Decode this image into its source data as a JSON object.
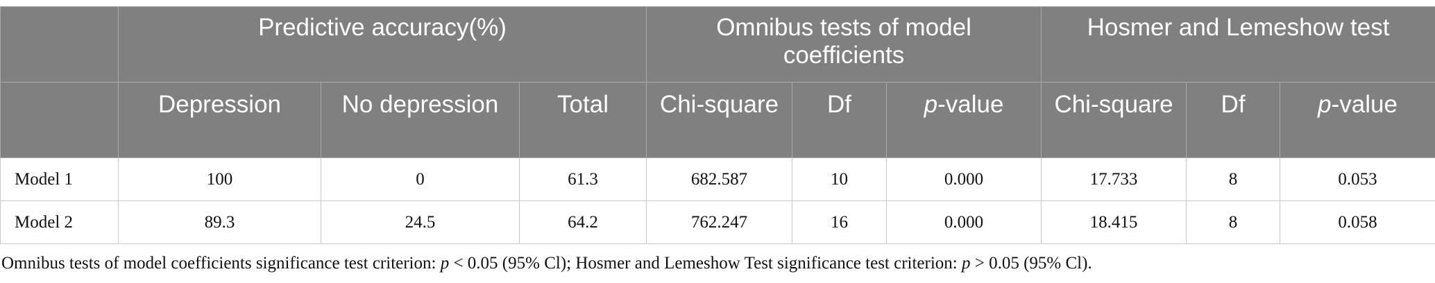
{
  "table": {
    "header_groups": [
      "Predictive accuracy(%)",
      "Omnibus tests of model coefficients",
      "Hosmer and Lemeshow test"
    ],
    "columns": [
      {
        "text": "Depression"
      },
      {
        "text": "No depression"
      },
      {
        "text": "Total"
      },
      {
        "text": "Chi-square"
      },
      {
        "text": "Df"
      },
      {
        "italic": "p",
        "text": "-value"
      },
      {
        "text": "Chi-square"
      },
      {
        "text": "Df"
      },
      {
        "italic": "p",
        "text": "-value"
      }
    ],
    "rows": [
      [
        "Model 1",
        "100",
        "0",
        "61.3",
        "682.587",
        "10",
        "0.000",
        "17.733",
        "8",
        "0.053"
      ],
      [
        "Model 2",
        "89.3",
        "24.5",
        "64.2",
        "762.247",
        "16",
        "0.000",
        "18.415",
        "8",
        "0.058"
      ]
    ]
  },
  "footnote": [
    "Omnibus tests of model coefficients significance test criterion: ",
    "p",
    " < 0.05 (95% Cl); Hosmer and Lemeshow Test significance test criterion: ",
    "p",
    " > 0.05 (95% Cl)."
  ]
}
